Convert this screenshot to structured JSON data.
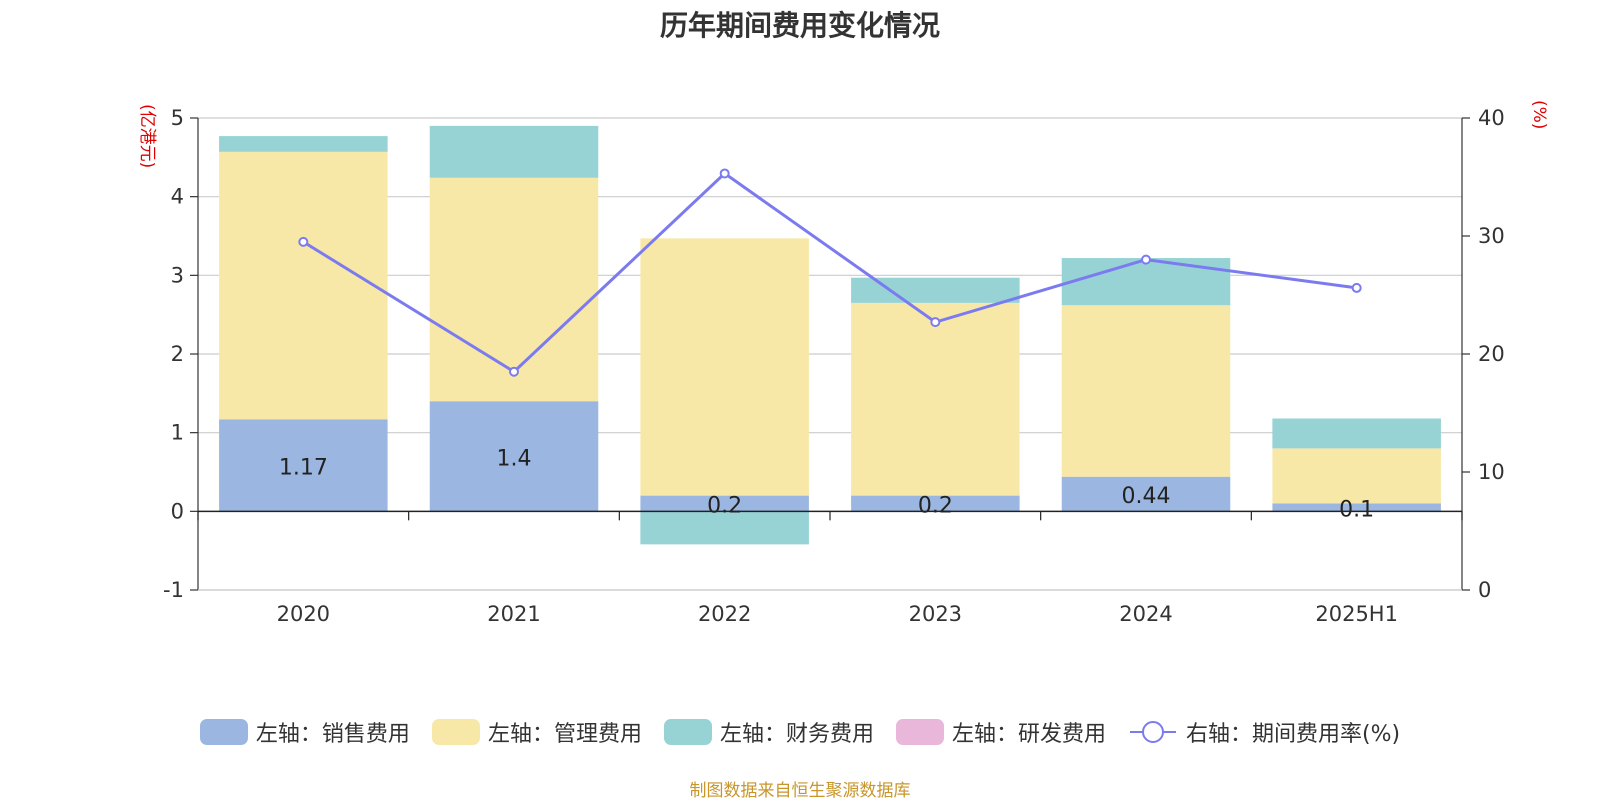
{
  "chart_data": {
    "type": "bar",
    "title": "历年期间费用变化情况",
    "categories": [
      "2020",
      "2021",
      "2022",
      "2023",
      "2024",
      "2025H1"
    ],
    "left_axis": {
      "unit_label": "(亿港元)",
      "ylim": [
        -1,
        5
      ],
      "ticks": [
        "-1",
        "0",
        "1",
        "2",
        "3",
        "4",
        "5"
      ]
    },
    "right_axis": {
      "unit_label": "(%)",
      "ylim": [
        0,
        40
      ],
      "ticks": [
        "0",
        "10",
        "20",
        "30",
        "40"
      ]
    },
    "series": [
      {
        "name": "左轴：销售费用",
        "type": "bar",
        "axis": "left",
        "color": "#9bb7e1",
        "values": [
          1.17,
          1.4,
          0.2,
          0.2,
          0.44,
          0.1
        ],
        "labels": [
          "1.17",
          "1.4",
          "0.2",
          "0.2",
          "0.44",
          "0.1"
        ]
      },
      {
        "name": "左轴：管理费用",
        "type": "bar",
        "axis": "left",
        "color": "#f8e8a8",
        "values": [
          3.4,
          2.84,
          3.27,
          2.45,
          2.18,
          0.7
        ]
      },
      {
        "name": "左轴：财务费用",
        "type": "bar",
        "axis": "left",
        "color": "#97d3d4",
        "values": [
          0.2,
          0.66,
          -0.42,
          0.32,
          0.6,
          0.38
        ]
      },
      {
        "name": "左轴：研发费用",
        "type": "bar",
        "axis": "left",
        "color": "#e8b7d9",
        "values": [
          0,
          0,
          0,
          0,
          0,
          0
        ]
      },
      {
        "name": "右轴：期间费用率(%)",
        "type": "line",
        "axis": "right",
        "color": "#7b7bef",
        "values": [
          29.5,
          18.5,
          35.3,
          22.7,
          28.0,
          25.6
        ]
      }
    ]
  },
  "source_note": "制图数据来自恒生聚源数据库"
}
